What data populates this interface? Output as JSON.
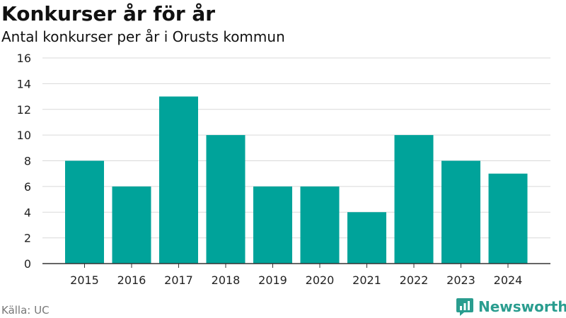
{
  "header": {
    "title": "Konkurser år för år",
    "subtitle": "Antal konkurser per år i Orusts kommun"
  },
  "footer": {
    "source": "Källa: UC",
    "brand": "Newsworthy",
    "brand_icon": "newsworthy-logo-icon"
  },
  "colors": {
    "bar": "#00a39a",
    "grid": "#d9d9d9",
    "axis": "#333333",
    "brand": "#2a9d8f"
  },
  "chart_data": {
    "type": "bar",
    "title": "Konkurser år för år",
    "subtitle": "Antal konkurser per år i Orusts kommun",
    "xlabel": "",
    "ylabel": "",
    "categories": [
      "2015",
      "2016",
      "2017",
      "2018",
      "2019",
      "2020",
      "2021",
      "2022",
      "2023",
      "2024"
    ],
    "values": [
      8,
      6,
      13,
      10,
      6,
      6,
      4,
      10,
      8,
      7
    ],
    "ylim": [
      0,
      16
    ],
    "yticks": [
      0,
      2,
      4,
      6,
      8,
      10,
      12,
      14,
      16
    ],
    "grid": true,
    "legend": "none"
  }
}
